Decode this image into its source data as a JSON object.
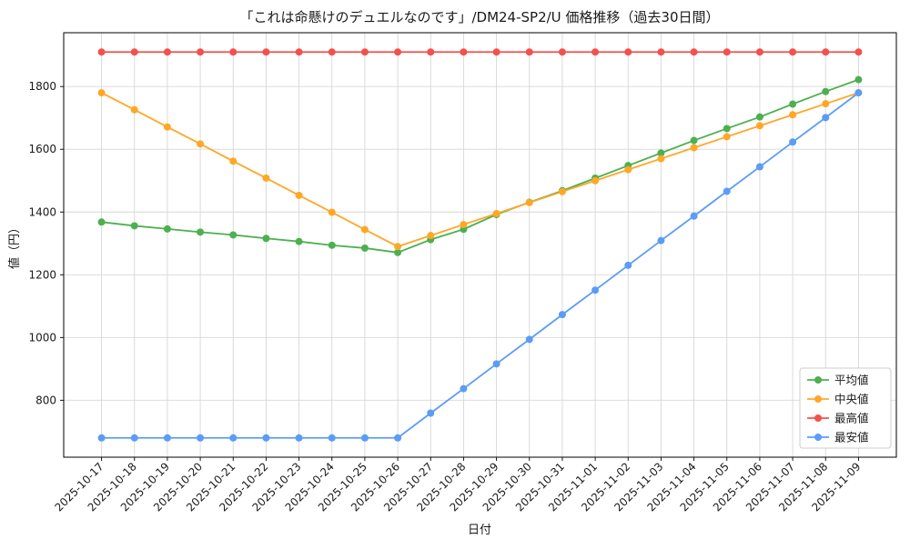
{
  "chart_data": {
    "type": "line",
    "title": "「これは命懸けのデュエルなのです」/DM24-SP2/U 価格推移（過去30日間）",
    "xlabel": "日付",
    "ylabel": "値（円）",
    "grid": true,
    "legend_position": "lower right",
    "x": [
      "2025-10-17",
      "2025-10-18",
      "2025-10-19",
      "2025-10-20",
      "2025-10-21",
      "2025-10-22",
      "2025-10-23",
      "2025-10-24",
      "2025-10-25",
      "2025-10-26",
      "2025-10-27",
      "2025-10-28",
      "2025-10-29",
      "2025-10-30",
      "2025-10-31",
      "2025-11-01",
      "2025-11-02",
      "2025-11-03",
      "2025-11-04",
      "2025-11-05",
      "2025-11-06",
      "2025-11-07",
      "2025-11-08",
      "2025-11-09"
    ],
    "y_ticks": [
      800,
      1000,
      1200,
      1400,
      1600,
      1800
    ],
    "ylim": [
      618.5,
      1971.5
    ],
    "series": [
      {
        "key": "average",
        "name": "平均値",
        "color": "#4cb050",
        "values": [
          1368,
          1356,
          1346,
          1336,
          1327,
          1316,
          1306,
          1294,
          1285,
          1271,
          1312,
          1345,
          1392,
          1431,
          1468,
          1508,
          1548,
          1588,
          1628,
          1666,
          1703,
          1744,
          1784,
          1822
        ]
      },
      {
        "key": "median",
        "name": "中央値",
        "color": "#ffa726",
        "values": [
          1780,
          1726,
          1671,
          1617,
          1562,
          1508,
          1453,
          1399,
          1344,
          1290,
          1325,
          1360,
          1395,
          1430,
          1465,
          1500,
          1535,
          1570,
          1605,
          1640,
          1675,
          1710,
          1745,
          1780
        ]
      },
      {
        "key": "max",
        "name": "最高値",
        "color": "#f4504c",
        "values": [
          1910,
          1910,
          1910,
          1910,
          1910,
          1910,
          1910,
          1910,
          1910,
          1910,
          1910,
          1910,
          1910,
          1910,
          1910,
          1910,
          1910,
          1910,
          1910,
          1910,
          1910,
          1910,
          1910,
          1910
        ]
      },
      {
        "key": "min",
        "name": "最安値",
        "color": "#5b9cf6",
        "values": [
          680,
          680,
          680,
          680,
          680,
          680,
          680,
          680,
          680,
          680,
          759,
          837,
          916,
          994,
          1073,
          1151,
          1230,
          1309,
          1387,
          1466,
          1544,
          1623,
          1701,
          1780
        ]
      }
    ]
  }
}
